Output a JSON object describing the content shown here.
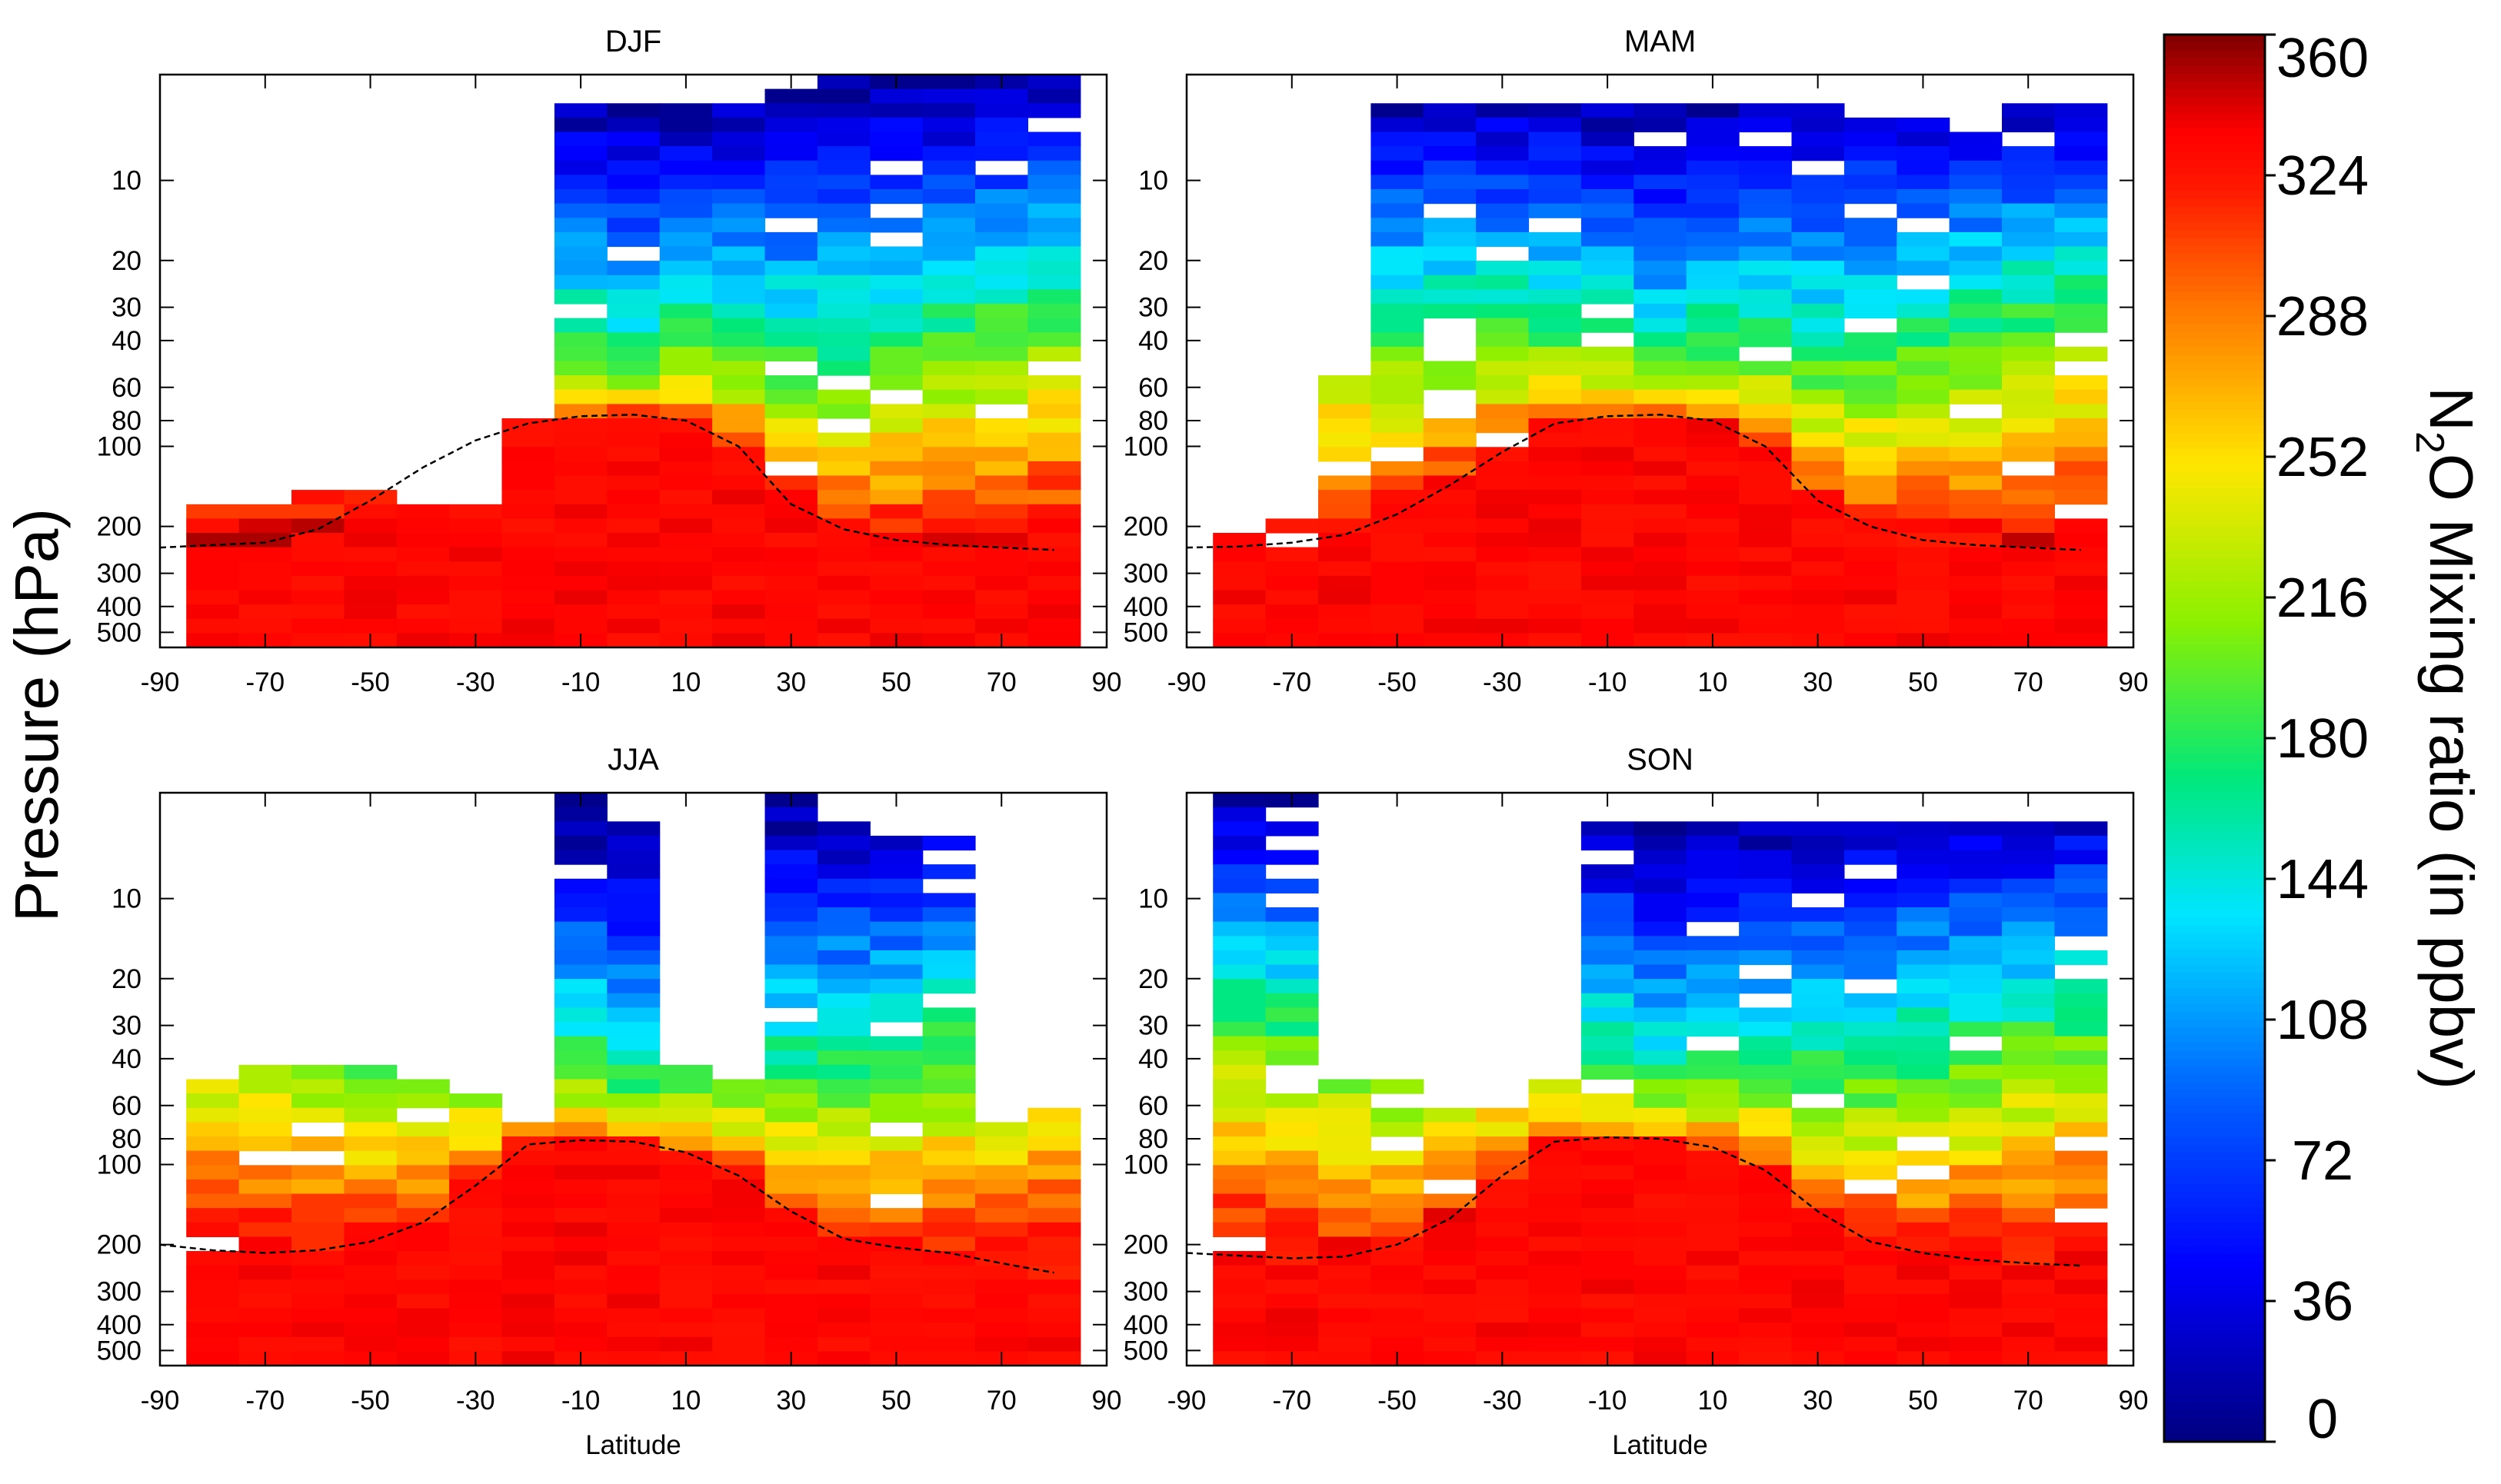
{
  "figure": {
    "ylabel": "Pressure (hPa)",
    "xlabel": "Latitude"
  },
  "chart_data": [
    {
      "type": "heatmap",
      "title": "DJF",
      "xlabel": "",
      "ylabel": "Pressure (hPa)",
      "xlim": [
        -90,
        90
      ],
      "ylim_hPa": [
        570,
        4
      ],
      "y_scale": "log",
      "xticks": [
        -90,
        -70,
        -50,
        -30,
        -10,
        10,
        30,
        50,
        70,
        90
      ],
      "yticks": [
        10,
        20,
        30,
        40,
        60,
        80,
        100,
        200,
        300,
        400,
        500
      ],
      "lat_bins": [
        -80,
        -70,
        -60,
        -50,
        -40,
        -30,
        -20,
        -10,
        0,
        10,
        20,
        30,
        40,
        50,
        60,
        70,
        80
      ],
      "column_tops_hPa": [
        170,
        165,
        145,
        145,
        165,
        170,
        80,
        5,
        5,
        5,
        5,
        4,
        4,
        4,
        4,
        4,
        4
      ],
      "tropopause_lat": [
        -90,
        -80,
        -70,
        -60,
        -50,
        -40,
        -30,
        -20,
        -10,
        0,
        10,
        20,
        30,
        40,
        50,
        60,
        70,
        80
      ],
      "tropopause_hPa": [
        240,
        235,
        230,
        205,
        160,
        120,
        95,
        82,
        77,
        76,
        80,
        100,
        165,
        205,
        225,
        235,
        240,
        245
      ]
    },
    {
      "type": "heatmap",
      "title": "MAM",
      "xlabel": "",
      "ylabel": "",
      "xlim": [
        -90,
        90
      ],
      "ylim_hPa": [
        570,
        4
      ],
      "y_scale": "log",
      "xticks": [
        -90,
        -70,
        -50,
        -30,
        -10,
        10,
        30,
        50,
        70,
        90
      ],
      "yticks": [
        10,
        20,
        30,
        40,
        60,
        80,
        100,
        200,
        300,
        400,
        500
      ],
      "lat_bins": [
        -80,
        -70,
        -60,
        -50,
        -40,
        -30,
        -20,
        -10,
        0,
        10,
        20,
        30,
        40,
        50,
        60,
        70,
        80
      ],
      "column_tops_hPa": [
        200,
        190,
        55,
        5,
        5,
        5,
        5,
        5,
        5,
        5,
        5,
        5,
        5,
        5,
        5,
        5,
        5
      ],
      "tropopause_lat": [
        -90,
        -80,
        -70,
        -60,
        -50,
        -40,
        -30,
        -20,
        -10,
        0,
        10,
        20,
        30,
        40,
        50,
        60,
        70,
        80
      ],
      "tropopause_hPa": [
        240,
        238,
        230,
        215,
        180,
        140,
        105,
        82,
        77,
        76,
        80,
        100,
        160,
        200,
        225,
        235,
        240,
        245
      ]
    },
    {
      "type": "heatmap",
      "title": "JJA",
      "xlabel": "Latitude",
      "ylabel": "",
      "xlim": [
        -90,
        90
      ],
      "ylim_hPa": [
        570,
        4
      ],
      "y_scale": "log",
      "xticks": [
        -90,
        -70,
        -50,
        -30,
        -10,
        10,
        30,
        50,
        70,
        90
      ],
      "yticks": [
        10,
        20,
        30,
        40,
        60,
        80,
        100,
        200,
        300,
        400,
        500
      ],
      "lat_bins": [
        -80,
        -70,
        -60,
        -50,
        -40,
        -30,
        -20,
        -10,
        0,
        10,
        20,
        30,
        40,
        50,
        60,
        70,
        80
      ],
      "column_tops_hPa": [
        50,
        40,
        40,
        40,
        50,
        55,
        70,
        4,
        5,
        40,
        45,
        4,
        5,
        6,
        6,
        60,
        60
      ],
      "tropopause_lat": [
        -90,
        -80,
        -70,
        -60,
        -50,
        -40,
        -30,
        -20,
        -10,
        0,
        10,
        20,
        30,
        40,
        50,
        60,
        70,
        80
      ],
      "tropopause_hPa": [
        200,
        210,
        215,
        210,
        195,
        165,
        120,
        84,
        81,
        82,
        90,
        110,
        150,
        190,
        205,
        215,
        235,
        255
      ]
    },
    {
      "type": "heatmap",
      "title": "SON",
      "xlabel": "Latitude",
      "ylabel": "",
      "xlim": [
        -90,
        90
      ],
      "ylim_hPa": [
        570,
        4
      ],
      "y_scale": "log",
      "xticks": [
        -90,
        -70,
        -50,
        -30,
        -10,
        10,
        30,
        50,
        70,
        90
      ],
      "yticks": [
        10,
        20,
        30,
        40,
        60,
        80,
        100,
        200,
        300,
        400,
        500
      ],
      "lat_bins": [
        -80,
        -70,
        -60,
        -50,
        -40,
        -30,
        -20,
        -10,
        0,
        10,
        20,
        30,
        40,
        50,
        60,
        70,
        80
      ],
      "column_tops_hPa": [
        4,
        4,
        45,
        45,
        60,
        60,
        45,
        5,
        5,
        5,
        5,
        5,
        5,
        5,
        5,
        5,
        5
      ],
      "tropopause_lat": [
        -90,
        -80,
        -70,
        -60,
        -50,
        -40,
        -30,
        -20,
        -10,
        0,
        10,
        20,
        30,
        40,
        50,
        60,
        70,
        80
      ],
      "tropopause_hPa": [
        215,
        220,
        225,
        222,
        200,
        160,
        110,
        82,
        79,
        80,
        86,
        105,
        150,
        195,
        215,
        228,
        235,
        240
      ]
    }
  ],
  "colorbar": {
    "label_prefix": "N",
    "label_sub": "2",
    "label_suffix": "O Mixing ratio (in ppbv)",
    "ticks": [
      0,
      36,
      72,
      108,
      144,
      180,
      216,
      252,
      288,
      324,
      360
    ],
    "vmin": 0,
    "vmax": 360,
    "stops": [
      {
        "v": 0,
        "c": "#00007f"
      },
      {
        "v": 45,
        "c": "#0000ff"
      },
      {
        "v": 90,
        "c": "#0064ff"
      },
      {
        "v": 135,
        "c": "#00e6ff"
      },
      {
        "v": 170,
        "c": "#00e87a"
      },
      {
        "v": 210,
        "c": "#8cf000"
      },
      {
        "v": 250,
        "c": "#ffe600"
      },
      {
        "v": 290,
        "c": "#ff7800"
      },
      {
        "v": 320,
        "c": "#ff1a00"
      },
      {
        "v": 335,
        "c": "#ff0000"
      },
      {
        "v": 360,
        "c": "#7f0000"
      }
    ]
  }
}
